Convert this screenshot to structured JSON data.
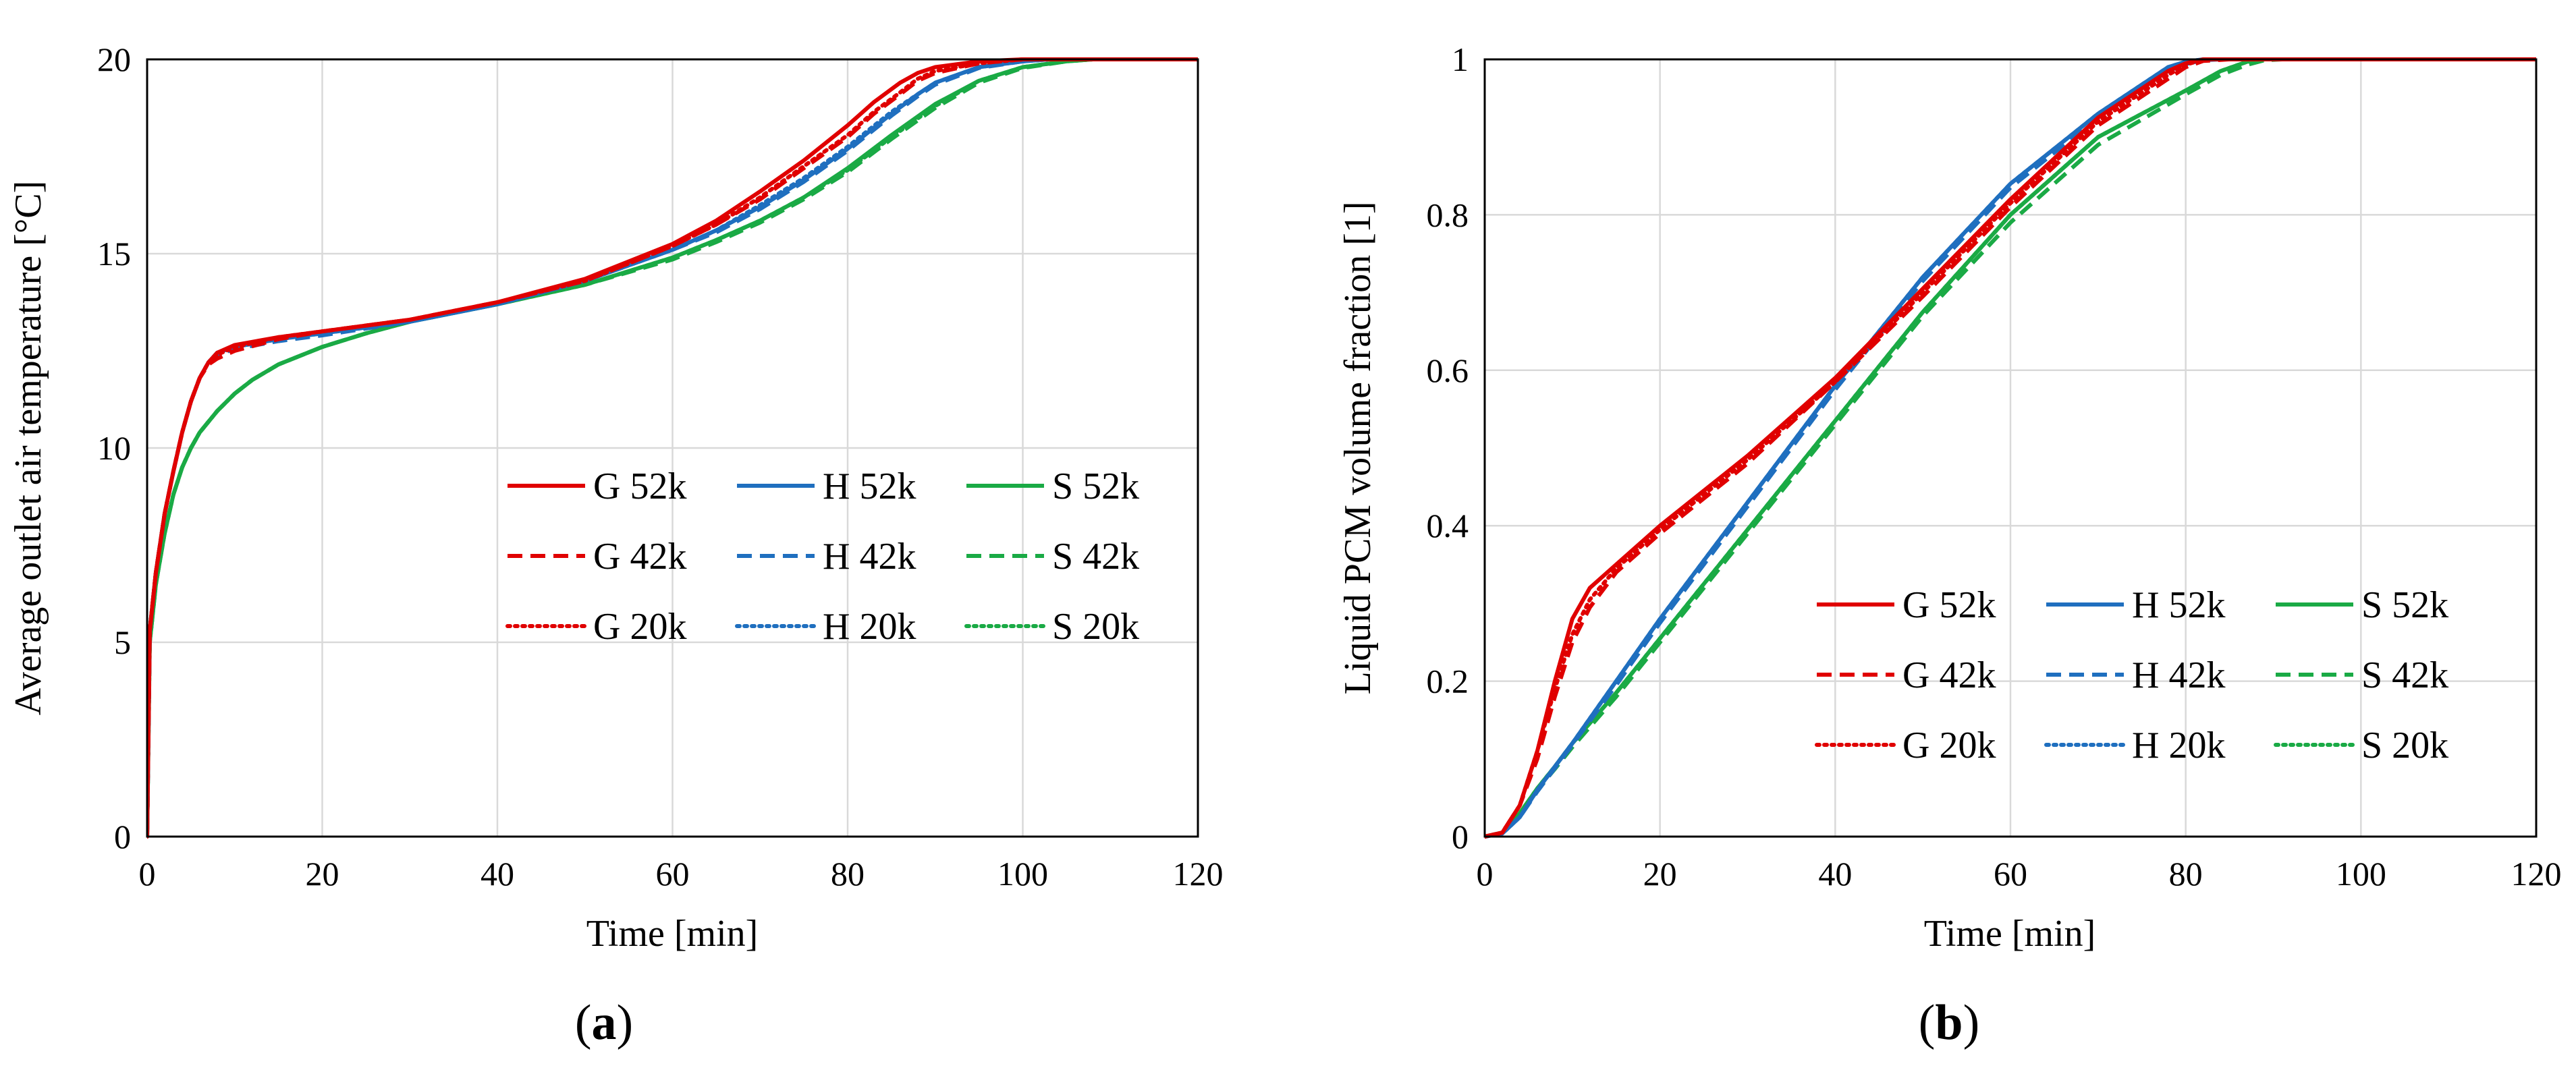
{
  "colors": {
    "G": "#e00000",
    "H": "#1f6fbf",
    "S": "#1aaa45",
    "grid": "#d9d9d9",
    "frame": "#000000"
  },
  "chart_data": [
    {
      "type": "line",
      "panel_label": {
        "open": "(",
        "letter": "a",
        "close": ")"
      },
      "xlabel": "Time [min]",
      "ylabel": "Average outlet air temperature [°C]",
      "xlim": [
        0,
        120
      ],
      "ylim": [
        0,
        20
      ],
      "xticks": [
        "0",
        "20",
        "40",
        "60",
        "80",
        "100",
        "120"
      ],
      "yticks": [
        "0",
        "5",
        "10",
        "15",
        "20"
      ],
      "grid": true,
      "legend": {
        "placement": "center-right",
        "columns": 3
      },
      "series": [
        {
          "name": "G 52k",
          "family": "G",
          "style": "solid",
          "x": [
            0,
            0.3,
            1,
            2,
            3,
            4,
            5,
            6,
            7,
            8,
            10,
            15,
            20,
            30,
            40,
            50,
            60,
            65,
            70,
            75,
            80,
            83,
            86,
            88,
            90,
            95,
            100,
            105,
            110,
            120
          ],
          "y": [
            0,
            5.3,
            6.8,
            8.3,
            9.4,
            10.4,
            11.2,
            11.8,
            12.2,
            12.45,
            12.65,
            12.85,
            13.0,
            13.3,
            13.75,
            14.35,
            15.25,
            15.85,
            16.6,
            17.4,
            18.3,
            18.9,
            19.4,
            19.65,
            19.8,
            19.95,
            20.0,
            20.0,
            20.0,
            20.0
          ]
        },
        {
          "name": "G 42k",
          "family": "G",
          "style": "dashed",
          "x": [
            0,
            0.3,
            1,
            2,
            3,
            4,
            5,
            6,
            7,
            8,
            10,
            15,
            20,
            30,
            40,
            50,
            60,
            65,
            70,
            75,
            80,
            83,
            86,
            88,
            90,
            95,
            100,
            105,
            110,
            120
          ],
          "y": [
            0,
            5.3,
            6.8,
            8.3,
            9.4,
            10.4,
            11.2,
            11.8,
            12.15,
            12.3,
            12.5,
            12.8,
            13.0,
            13.3,
            13.75,
            14.3,
            15.2,
            15.75,
            16.4,
            17.2,
            18.0,
            18.6,
            19.1,
            19.45,
            19.65,
            19.9,
            20.0,
            20.0,
            20.0,
            20.0
          ]
        },
        {
          "name": "G 20k",
          "family": "G",
          "style": "dotted",
          "x": [
            0,
            0.3,
            1,
            2,
            3,
            4,
            5,
            6,
            7,
            8,
            10,
            15,
            20,
            30,
            40,
            50,
            60,
            65,
            70,
            75,
            80,
            83,
            86,
            88,
            90,
            95,
            100,
            105,
            110,
            120
          ],
          "y": [
            0,
            5.3,
            6.8,
            8.3,
            9.4,
            10.4,
            11.2,
            11.8,
            12.2,
            12.4,
            12.6,
            12.85,
            13.0,
            13.3,
            13.75,
            14.3,
            15.2,
            15.75,
            16.45,
            17.25,
            18.05,
            18.65,
            19.15,
            19.5,
            19.7,
            19.9,
            20.0,
            20.0,
            20.0,
            20.0
          ]
        },
        {
          "name": "H 52k",
          "family": "H",
          "style": "solid",
          "x": [
            0,
            0.3,
            1,
            2,
            3,
            4,
            5,
            6,
            7,
            8,
            10,
            15,
            20,
            30,
            40,
            50,
            60,
            65,
            70,
            75,
            80,
            85,
            88,
            90,
            95,
            100,
            103,
            106,
            110,
            120
          ],
          "y": [
            0,
            5.3,
            6.8,
            8.3,
            9.4,
            10.4,
            11.2,
            11.8,
            12.2,
            12.45,
            12.6,
            12.8,
            12.95,
            13.25,
            13.7,
            14.3,
            15.1,
            15.6,
            16.2,
            16.9,
            17.7,
            18.6,
            19.1,
            19.4,
            19.8,
            19.95,
            20.0,
            20.0,
            20.0,
            20.0
          ]
        },
        {
          "name": "H 42k",
          "family": "H",
          "style": "dashed",
          "x": [
            0,
            0.3,
            1,
            2,
            3,
            4,
            5,
            6,
            7,
            8,
            10,
            15,
            20,
            30,
            40,
            50,
            60,
            65,
            70,
            75,
            80,
            85,
            88,
            90,
            95,
            100,
            103,
            106,
            110,
            120
          ],
          "y": [
            0,
            5.3,
            6.8,
            8.3,
            9.4,
            10.4,
            11.2,
            11.8,
            12.2,
            12.4,
            12.55,
            12.75,
            12.9,
            13.25,
            13.7,
            14.3,
            15.1,
            15.55,
            16.15,
            16.85,
            17.65,
            18.55,
            19.05,
            19.35,
            19.78,
            19.95,
            20.0,
            20.0,
            20.0,
            20.0
          ]
        },
        {
          "name": "H 20k",
          "family": "H",
          "style": "dotted",
          "x": [
            0,
            0.3,
            1,
            2,
            3,
            4,
            5,
            6,
            7,
            8,
            10,
            15,
            20,
            30,
            40,
            50,
            60,
            65,
            70,
            75,
            80,
            85,
            88,
            90,
            95,
            100,
            103,
            106,
            110,
            120
          ],
          "y": [
            0,
            5.3,
            6.8,
            8.3,
            9.4,
            10.4,
            11.2,
            11.8,
            12.2,
            12.45,
            12.6,
            12.8,
            12.95,
            13.25,
            13.7,
            14.3,
            15.1,
            15.6,
            16.25,
            16.95,
            17.75,
            18.65,
            19.1,
            19.4,
            19.8,
            19.95,
            20.0,
            20.0,
            20.0,
            20.0
          ]
        },
        {
          "name": "S 52k",
          "family": "S",
          "style": "solid",
          "x": [
            0,
            0.3,
            1,
            2,
            3,
            4,
            5,
            6,
            8,
            10,
            12,
            15,
            20,
            25,
            30,
            40,
            50,
            60,
            65,
            70,
            75,
            80,
            85,
            90,
            95,
            100,
            105,
            108,
            110,
            120
          ],
          "y": [
            0,
            5.0,
            6.5,
            7.8,
            8.8,
            9.5,
            10.0,
            10.4,
            10.95,
            11.4,
            11.75,
            12.15,
            12.6,
            12.95,
            13.25,
            13.7,
            14.2,
            14.9,
            15.35,
            15.85,
            16.45,
            17.2,
            18.05,
            18.85,
            19.45,
            19.8,
            19.95,
            20.0,
            20.0,
            20.0
          ]
        },
        {
          "name": "S 42k",
          "family": "S",
          "style": "dashed",
          "x": [
            0,
            0.3,
            1,
            2,
            3,
            4,
            5,
            6,
            8,
            10,
            12,
            15,
            20,
            25,
            30,
            40,
            50,
            60,
            65,
            70,
            75,
            80,
            85,
            90,
            95,
            100,
            105,
            108,
            110,
            120
          ],
          "y": [
            0,
            5.0,
            6.5,
            7.8,
            8.8,
            9.5,
            10.0,
            10.4,
            10.95,
            11.4,
            11.75,
            12.15,
            12.6,
            12.95,
            13.25,
            13.7,
            14.2,
            14.85,
            15.3,
            15.8,
            16.4,
            17.1,
            17.95,
            18.75,
            19.4,
            19.78,
            19.95,
            20.0,
            20.0,
            20.0
          ]
        },
        {
          "name": "S 20k",
          "family": "S",
          "style": "dotted",
          "x": [
            0,
            0.3,
            1,
            2,
            3,
            4,
            5,
            6,
            8,
            10,
            12,
            15,
            20,
            25,
            30,
            40,
            50,
            60,
            65,
            70,
            75,
            80,
            85,
            90,
            95,
            100,
            105,
            108,
            110,
            120
          ],
          "y": [
            0,
            5.0,
            6.5,
            7.8,
            8.8,
            9.5,
            10.0,
            10.4,
            10.95,
            11.4,
            11.75,
            12.15,
            12.6,
            12.95,
            13.25,
            13.7,
            14.2,
            14.9,
            15.35,
            15.85,
            16.45,
            17.15,
            18.0,
            18.8,
            19.45,
            19.8,
            19.95,
            20.0,
            20.0,
            20.0
          ]
        }
      ]
    },
    {
      "type": "line",
      "panel_label": {
        "open": "(",
        "letter": "b",
        "close": ")"
      },
      "xlabel": "Time [min]",
      "ylabel": "Liquid PCM volume fraction [1]",
      "xlim": [
        0,
        120
      ],
      "ylim": [
        0,
        1
      ],
      "xticks": [
        "0",
        "20",
        "40",
        "60",
        "80",
        "100",
        "120"
      ],
      "yticks": [
        "0",
        "0.2",
        "0.4",
        "0.6",
        "0.8",
        "1"
      ],
      "grid": true,
      "legend": {
        "placement": "center-right",
        "columns": 3
      },
      "series": [
        {
          "name": "G 52k",
          "family": "G",
          "style": "solid",
          "x": [
            0,
            2,
            4,
            6,
            8,
            10,
            12,
            15,
            20,
            30,
            40,
            50,
            60,
            70,
            78,
            80,
            82,
            85,
            90,
            100,
            120
          ],
          "y": [
            0,
            0.005,
            0.04,
            0.11,
            0.2,
            0.28,
            0.32,
            0.35,
            0.4,
            0.49,
            0.59,
            0.705,
            0.82,
            0.925,
            0.985,
            0.995,
            1.0,
            1.0,
            1.0,
            1.0,
            1.0
          ]
        },
        {
          "name": "G 42k",
          "family": "G",
          "style": "dashed",
          "x": [
            0,
            2,
            4,
            6,
            8,
            10,
            12,
            15,
            20,
            30,
            40,
            50,
            60,
            70,
            78,
            80,
            82,
            85,
            90,
            100,
            120
          ],
          "y": [
            0,
            0.005,
            0.04,
            0.1,
            0.18,
            0.25,
            0.295,
            0.34,
            0.39,
            0.48,
            0.585,
            0.695,
            0.81,
            0.915,
            0.975,
            0.99,
            0.998,
            1.0,
            1.0,
            1.0,
            1.0
          ]
        },
        {
          "name": "G 20k",
          "family": "G",
          "style": "dotted",
          "x": [
            0,
            2,
            4,
            6,
            8,
            10,
            12,
            15,
            20,
            30,
            40,
            50,
            60,
            70,
            78,
            80,
            82,
            85,
            90,
            100,
            120
          ],
          "y": [
            0,
            0.005,
            0.04,
            0.11,
            0.19,
            0.26,
            0.305,
            0.345,
            0.395,
            0.485,
            0.585,
            0.7,
            0.815,
            0.92,
            0.98,
            0.993,
            1.0,
            1.0,
            1.0,
            1.0,
            1.0
          ]
        },
        {
          "name": "H 52k",
          "family": "H",
          "style": "solid",
          "x": [
            0,
            2,
            4,
            6,
            8,
            10,
            15,
            20,
            30,
            40,
            50,
            60,
            70,
            78,
            80,
            82,
            84,
            86,
            90,
            100,
            120
          ],
          "y": [
            0,
            0.004,
            0.025,
            0.06,
            0.09,
            0.12,
            0.2,
            0.28,
            0.43,
            0.58,
            0.72,
            0.84,
            0.93,
            0.99,
            0.997,
            1.0,
            1.0,
            1.0,
            1.0,
            1.0,
            1.0
          ]
        },
        {
          "name": "H 42k",
          "family": "H",
          "style": "dashed",
          "x": [
            0,
            2,
            4,
            6,
            8,
            10,
            15,
            20,
            30,
            40,
            50,
            60,
            70,
            78,
            80,
            82,
            84,
            86,
            90,
            100,
            120
          ],
          "y": [
            0,
            0.004,
            0.025,
            0.058,
            0.088,
            0.118,
            0.195,
            0.275,
            0.425,
            0.575,
            0.715,
            0.835,
            0.925,
            0.985,
            0.994,
            0.999,
            1.0,
            1.0,
            1.0,
            1.0,
            1.0
          ]
        },
        {
          "name": "H 20k",
          "family": "H",
          "style": "dotted",
          "x": [
            0,
            2,
            4,
            6,
            8,
            10,
            15,
            20,
            30,
            40,
            50,
            60,
            70,
            78,
            80,
            82,
            84,
            86,
            90,
            100,
            120
          ],
          "y": [
            0,
            0.004,
            0.025,
            0.06,
            0.09,
            0.12,
            0.2,
            0.28,
            0.43,
            0.58,
            0.72,
            0.84,
            0.93,
            0.99,
            0.997,
            1.0,
            1.0,
            1.0,
            1.0,
            1.0,
            1.0
          ]
        },
        {
          "name": "S 52k",
          "family": "S",
          "style": "solid",
          "x": [
            0,
            2,
            4,
            6,
            8,
            10,
            15,
            20,
            30,
            40,
            50,
            60,
            70,
            80,
            84,
            87,
            89,
            91,
            95,
            100,
            120
          ],
          "y": [
            0,
            0.005,
            0.03,
            0.062,
            0.09,
            0.12,
            0.185,
            0.255,
            0.395,
            0.535,
            0.675,
            0.8,
            0.9,
            0.96,
            0.985,
            0.997,
            1.0,
            1.0,
            1.0,
            1.0,
            1.0
          ]
        },
        {
          "name": "S 42k",
          "family": "S",
          "style": "dashed",
          "x": [
            0,
            2,
            4,
            6,
            8,
            10,
            15,
            20,
            30,
            40,
            50,
            60,
            70,
            80,
            84,
            87,
            89,
            91,
            95,
            100,
            120
          ],
          "y": [
            0,
            0.005,
            0.028,
            0.06,
            0.087,
            0.115,
            0.18,
            0.25,
            0.39,
            0.53,
            0.67,
            0.79,
            0.89,
            0.955,
            0.98,
            0.993,
            0.999,
            1.0,
            1.0,
            1.0,
            1.0
          ]
        },
        {
          "name": "S 20k",
          "family": "S",
          "style": "dotted",
          "x": [
            0,
            2,
            4,
            6,
            8,
            10,
            15,
            20,
            30,
            40,
            50,
            60,
            70,
            80,
            84,
            87,
            89,
            91,
            95,
            100,
            120
          ],
          "y": [
            0,
            0.005,
            0.03,
            0.062,
            0.09,
            0.12,
            0.185,
            0.255,
            0.395,
            0.535,
            0.675,
            0.8,
            0.9,
            0.96,
            0.985,
            0.997,
            1.0,
            1.0,
            1.0,
            1.0,
            1.0
          ]
        }
      ]
    }
  ]
}
